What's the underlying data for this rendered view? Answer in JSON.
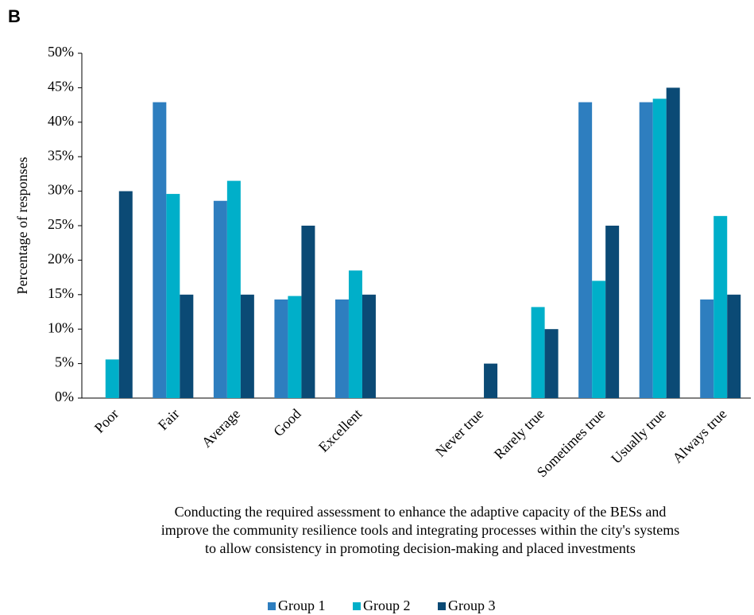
{
  "panel_label": "B",
  "chart_data": {
    "type": "bar",
    "y_label": "Percentage of responses",
    "x_label": [
      "Conducting the required assessment to enhance the adaptive capacity of the BESs and",
      "improve the community resilience tools and integrating processes within the city's systems",
      "to allow consistency in promoting decision-making and placed investments"
    ],
    "categories": [
      "Poor",
      "Fair",
      "Average",
      "Good",
      "Excellent",
      null,
      "Never true",
      "Rarely true",
      "Sometimes true",
      "Usually true",
      "Always true"
    ],
    "series": [
      {
        "name": "Group 1",
        "color": "#2e7ebf",
        "values": [
          0,
          42.9,
          28.6,
          14.3,
          14.3,
          null,
          0,
          0,
          42.9,
          42.9,
          14.3
        ]
      },
      {
        "name": "Group 2",
        "color": "#00afc9",
        "values": [
          5.6,
          29.6,
          31.5,
          14.8,
          18.5,
          null,
          0,
          13.2,
          17,
          43.4,
          26.4
        ]
      },
      {
        "name": "Group 3",
        "color": "#0b4a75",
        "values": [
          30,
          15,
          15,
          25,
          15,
          null,
          5,
          10,
          25,
          45,
          15
        ]
      }
    ],
    "ylim": [
      0,
      50
    ],
    "yticks": [
      {
        "value": 0,
        "label": "0%"
      },
      {
        "value": 5,
        "label": "5%"
      },
      {
        "value": 10,
        "label": "10%"
      },
      {
        "value": 15,
        "label": "15%"
      },
      {
        "value": 20,
        "label": "20%"
      },
      {
        "value": 25,
        "label": "25%"
      },
      {
        "value": 30,
        "label": "30%"
      },
      {
        "value": 35,
        "label": "35%"
      },
      {
        "value": 40,
        "label": "40%"
      },
      {
        "value": 45,
        "label": "45%"
      },
      {
        "value": 50,
        "label": "50%"
      }
    ],
    "legend": "bottom"
  }
}
